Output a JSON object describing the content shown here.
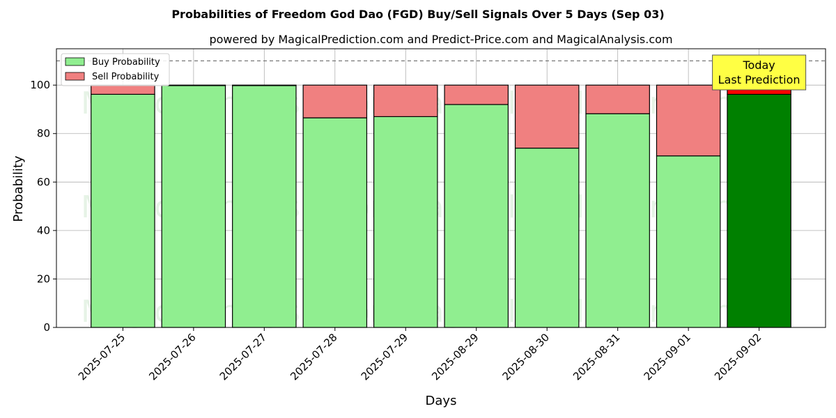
{
  "chart_data": {
    "type": "bar",
    "stacked": true,
    "title": "Probabilities of Freedom God Dao (FGD) Buy/Sell Signals Over 5 Days (Sep 03)",
    "subtitle": "powered by MagicalPrediction.com and Predict-Price.com and MagicalAnalysis.com",
    "xlabel": "Days",
    "ylabel": "Probability",
    "ylim": [
      0,
      115
    ],
    "yticks": [
      0,
      20,
      40,
      60,
      80,
      100
    ],
    "categories": [
      "2025-07-25",
      "2025-07-26",
      "2025-07-27",
      "2025-07-28",
      "2025-07-29",
      "2025-08-29",
      "2025-08-30",
      "2025-08-31",
      "2025-09-01",
      "2025-09-02"
    ],
    "series": [
      {
        "name": "Buy Probability",
        "values": [
          96.2,
          99.8,
          99.8,
          86.5,
          87.0,
          92.0,
          74.0,
          88.2,
          70.8,
          96.2
        ]
      },
      {
        "name": "Sell Probability",
        "values": [
          3.8,
          0.2,
          0.2,
          13.5,
          13.0,
          8.0,
          26.0,
          11.8,
          29.2,
          3.8
        ]
      }
    ],
    "reference_line": 110,
    "grid": true,
    "legend_position": "top-left",
    "colors": {
      "buy": "#90ee90",
      "sell": "#f08080",
      "buy_highlight": "#008000",
      "sell_highlight": "#ff0000",
      "annotation_bg": "#ffff44"
    },
    "highlight_index": 9,
    "annotation": "Today\nLast Prediction",
    "watermarks": [
      "MagicalAnalysis.com",
      "MagicalPrediction.com",
      "MagicalAnalysis.com",
      "MagicalPrediction.com",
      "MagicalAnalysis.com",
      "MagicalPrediction.com"
    ]
  }
}
